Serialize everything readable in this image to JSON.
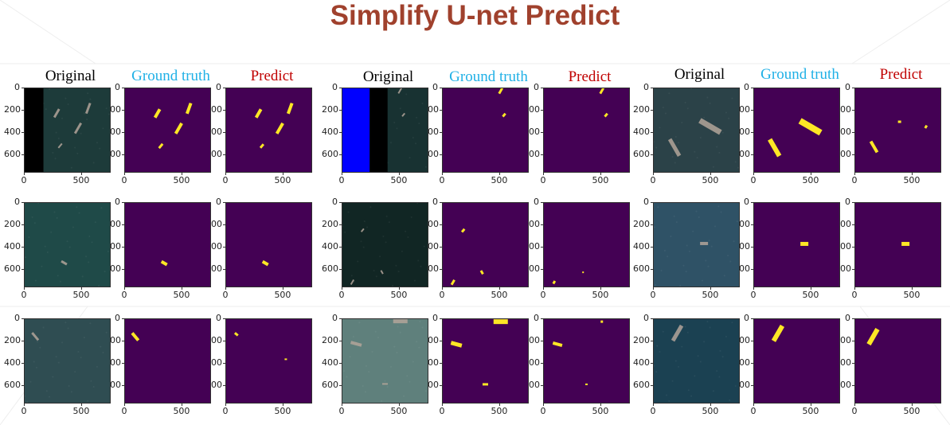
{
  "slide": {
    "title": "Simplify  U-net Predict",
    "title_color": "#A0412D"
  },
  "column_headers": [
    {
      "label": "Original",
      "color": "#000000"
    },
    {
      "label": "Ground truth",
      "color": "#1FB0E6"
    },
    {
      "label": "Predict",
      "color": "#C00000"
    }
  ],
  "axes": {
    "y_ticks": [
      "0",
      "200",
      "400",
      "600"
    ],
    "x_ticks": [
      "0",
      "500"
    ]
  },
  "colors": {
    "mask_background": "#440154",
    "mask_ship": "#FDE725"
  },
  "examples": [
    {
      "original": {
        "tone": "#1d3b3a",
        "stripes": [
          {
            "x0": 0,
            "x1": 0.22,
            "color": "#000000"
          }
        ]
      },
      "ground_truth": [
        [
          0.38,
          0.3,
          12,
          4,
          -60
        ],
        [
          0.75,
          0.24,
          14,
          4,
          -70
        ],
        [
          0.63,
          0.48,
          15,
          4,
          -60
        ],
        [
          0.42,
          0.69,
          7,
          3,
          -50
        ]
      ],
      "predict": [
        [
          0.38,
          0.3,
          12,
          4,
          -60
        ],
        [
          0.75,
          0.24,
          14,
          4,
          -70
        ],
        [
          0.63,
          0.48,
          15,
          4,
          -60
        ],
        [
          0.42,
          0.69,
          6,
          3,
          -50
        ]
      ]
    },
    {
      "original": {
        "tone": "#183232",
        "stripes": [
          {
            "x0": 0,
            "x1": 0.32,
            "color": "#0000ff"
          },
          {
            "x0": 0.32,
            "x1": 0.53,
            "color": "#000000"
          }
        ]
      },
      "ground_truth": [
        [
          0.68,
          0.03,
          8,
          3,
          -60
        ],
        [
          0.72,
          0.32,
          5,
          3,
          -50
        ]
      ],
      "predict": [
        [
          0.68,
          0.03,
          8,
          3,
          -60
        ],
        [
          0.73,
          0.32,
          5,
          3,
          -50
        ]
      ]
    },
    {
      "original": {
        "tone": "#2b4248",
        "stripes": []
      },
      "ground_truth": [
        [
          0.66,
          0.46,
          30,
          8,
          30
        ],
        [
          0.24,
          0.71,
          24,
          6,
          60
        ]
      ],
      "predict": [
        [
          0.52,
          0.4,
          4,
          3,
          0
        ],
        [
          0.83,
          0.46,
          4,
          3,
          -60
        ],
        [
          0.22,
          0.7,
          16,
          4,
          60
        ]
      ]
    },
    {
      "original": {
        "tone": "#1f4a48",
        "stripes": []
      },
      "ground_truth": [
        [
          0.46,
          0.72,
          8,
          4,
          30
        ]
      ],
      "predict": [
        [
          0.46,
          0.72,
          8,
          4,
          30
        ]
      ]
    },
    {
      "original": {
        "tone": "#112624",
        "stripes": []
      },
      "ground_truth": [
        [
          0.24,
          0.33,
          5,
          3,
          -50
        ],
        [
          0.46,
          0.83,
          5,
          3,
          60
        ],
        [
          0.12,
          0.95,
          7,
          3,
          -60
        ]
      ],
      "predict": [
        [
          0.12,
          0.95,
          4,
          3,
          -60
        ],
        [
          0.46,
          0.83,
          2,
          2,
          0
        ]
      ]
    },
    {
      "original": {
        "tone": "#2f5266",
        "stripes": []
      },
      "ground_truth": [
        [
          0.59,
          0.49,
          10,
          5,
          0
        ]
      ],
      "predict": [
        [
          0.59,
          0.49,
          10,
          5,
          0
        ]
      ]
    },
    {
      "original": {
        "tone": "#2f4d52",
        "stripes": []
      },
      "ground_truth": [
        [
          0.12,
          0.21,
          12,
          4,
          50
        ]
      ],
      "predict": [
        [
          0.12,
          0.18,
          5,
          3,
          40
        ],
        [
          0.7,
          0.48,
          3,
          2,
          0
        ]
      ]
    },
    {
      "original": {
        "tone": "#5f807c",
        "stripes": []
      },
      "ground_truth": [
        [
          0.68,
          0.03,
          18,
          6,
          0
        ],
        [
          0.16,
          0.3,
          14,
          5,
          15
        ],
        [
          0.5,
          0.78,
          7,
          3,
          0
        ]
      ],
      "predict": [
        [
          0.68,
          0.03,
          3,
          3,
          0
        ],
        [
          0.16,
          0.3,
          12,
          4,
          15
        ],
        [
          0.5,
          0.78,
          3,
          2,
          0
        ]
      ]
    },
    {
      "original": {
        "tone": "#1b4152",
        "stripes": []
      },
      "ground_truth": [
        [
          0.28,
          0.17,
          22,
          6,
          -60
        ]
      ],
      "predict": [
        [
          0.21,
          0.21,
          22,
          6,
          -60
        ]
      ]
    }
  ]
}
